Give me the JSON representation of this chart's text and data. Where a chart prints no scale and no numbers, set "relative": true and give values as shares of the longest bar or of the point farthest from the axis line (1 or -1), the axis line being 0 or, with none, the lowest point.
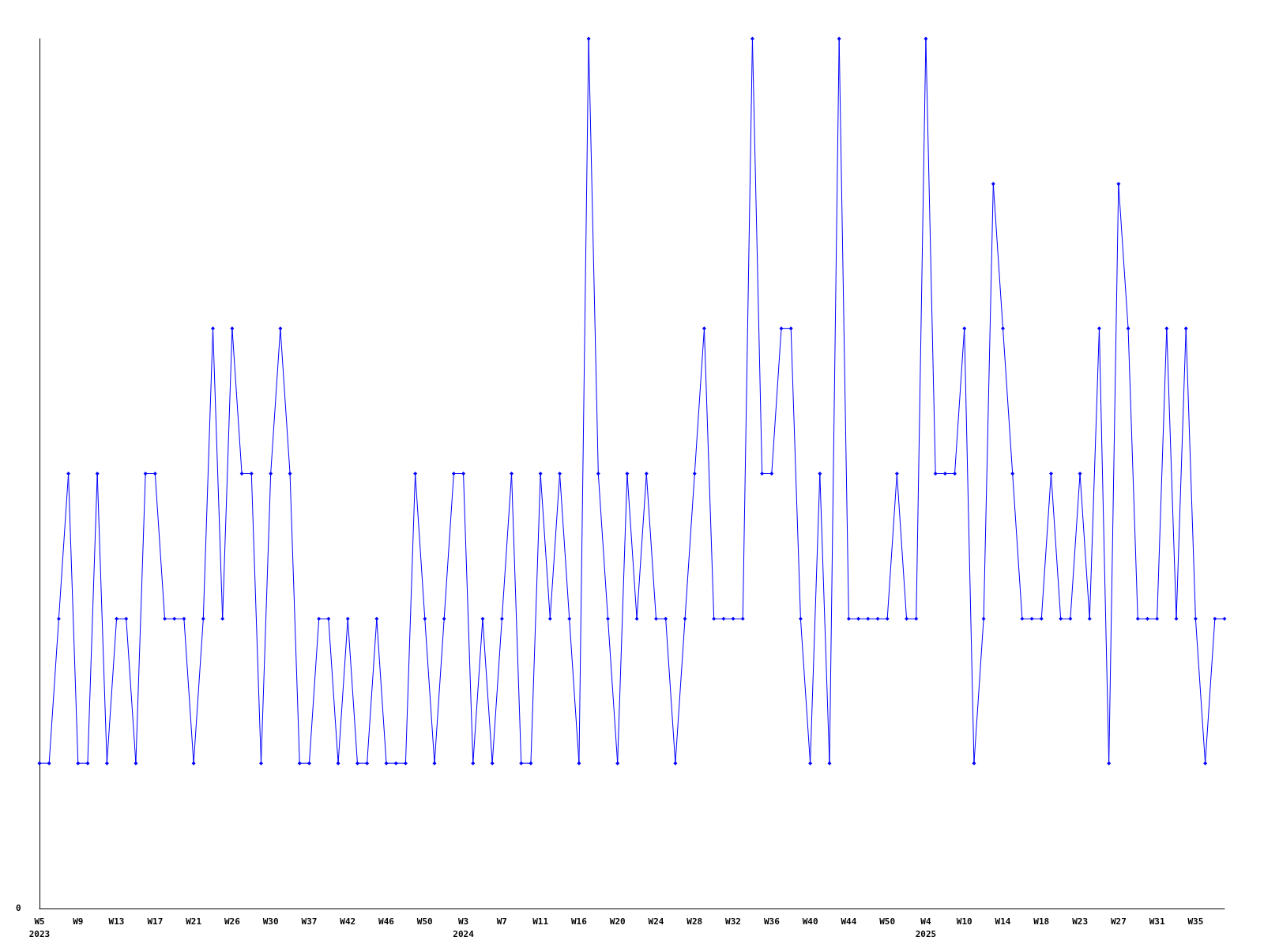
{
  "chart_data": {
    "type": "line",
    "relative": true,
    "marker": "diamond",
    "line_style": "solid",
    "grid": false,
    "categories": [
      "W5\n2023",
      null,
      null,
      null,
      "W9",
      null,
      null,
      null,
      "W13",
      null,
      null,
      null,
      "W17",
      null,
      null,
      null,
      "W21",
      null,
      null,
      null,
      "W26",
      null,
      null,
      null,
      "W30",
      null,
      null,
      null,
      "W37",
      null,
      null,
      null,
      "W42",
      null,
      null,
      null,
      "W46",
      null,
      null,
      null,
      "W50",
      null,
      null,
      null,
      "W3\n2024",
      null,
      null,
      null,
      "W7",
      null,
      null,
      null,
      "W11",
      null,
      null,
      null,
      "W16",
      null,
      null,
      null,
      "W20",
      null,
      null,
      null,
      "W24",
      null,
      null,
      null,
      "W28",
      null,
      null,
      null,
      "W32",
      null,
      null,
      null,
      "W36",
      null,
      null,
      null,
      "W40",
      null,
      null,
      null,
      "W44",
      null,
      null,
      null,
      "W50",
      null,
      null,
      null,
      "W4\n2025",
      null,
      null,
      null,
      "W10",
      null,
      null,
      null,
      "W14",
      null,
      null,
      null,
      "W18",
      null,
      null,
      null,
      "W23",
      null,
      null,
      null,
      "W27",
      null,
      null,
      null,
      "W31",
      null,
      null,
      null,
      "W35",
      null,
      null,
      null
    ],
    "series": [
      {
        "color": "#0000ff",
        "values": [
          0.167,
          0.167,
          0.333,
          0.5,
          0.167,
          0.167,
          0.5,
          0.167,
          0.333,
          0.333,
          0.167,
          0.5,
          0.5,
          0.333,
          0.333,
          0.333,
          0.167,
          0.333,
          0.667,
          0.333,
          0.667,
          0.5,
          0.5,
          0.167,
          0.5,
          0.667,
          0.5,
          0.167,
          0.167,
          0.333,
          0.333,
          0.167,
          0.333,
          0.167,
          0.167,
          0.333,
          0.167,
          0.167,
          0.167,
          0.5,
          0.333,
          0.167,
          0.333,
          0.5,
          0.5,
          0.167,
          0.333,
          0.167,
          0.333,
          0.5,
          0.167,
          0.167,
          0.5,
          0.333,
          0.5,
          0.333,
          0.167,
          1,
          0.5,
          0.333,
          0.167,
          0.5,
          0.333,
          0.5,
          0.333,
          0.333,
          0.167,
          0.333,
          0.5,
          0.667,
          0.333,
          0.333,
          0.333,
          0.333,
          1,
          0.5,
          0.5,
          0.667,
          0.667,
          0.333,
          0.167,
          0.5,
          0.167,
          1,
          0.333,
          0.333,
          0.333,
          0.333,
          0.333,
          0.5,
          0.333,
          0.333,
          1,
          0.5,
          0.5,
          0.5,
          0.667,
          0.167,
          0.333,
          0.833,
          0.667,
          0.5,
          0.333,
          0.333,
          0.333,
          0.5,
          0.333,
          0.333,
          0.5,
          0.333,
          0.667,
          0.167,
          0.833,
          0.667,
          0.333,
          0.333,
          0.333,
          0.667,
          0.333,
          0.667,
          0.333,
          0.167,
          0.333,
          0.333
        ]
      }
    ],
    "annotations": [
      "0"
    ]
  }
}
